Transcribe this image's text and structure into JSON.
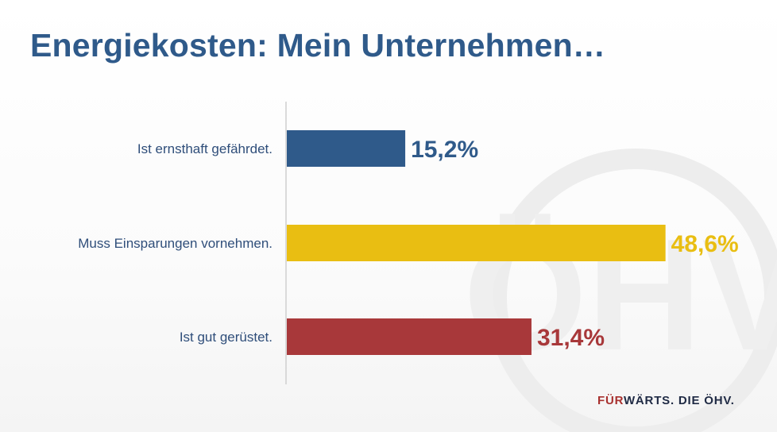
{
  "header": {
    "title": "Energiekosten: Mein Unternehmen…"
  },
  "chart_data": {
    "type": "bar",
    "orientation": "horizontal",
    "title": "Energiekosten: Mein Unternehmen…",
    "xlabel": "",
    "ylabel": "",
    "xlim": [
      0,
      52
    ],
    "grid": false,
    "categories": [
      "Ist ernsthaft gefährdet.",
      "Muss Einsparungen vornehmen.",
      "Ist gut gerüstet."
    ],
    "values": [
      15.2,
      48.6,
      31.4
    ],
    "value_labels": [
      "15,2%",
      "48,6%",
      "31,4%"
    ],
    "colors": [
      "#2f5a8a",
      "#e9be12",
      "#a8383a"
    ]
  },
  "footer": {
    "brand_part1": "FÜR",
    "brand_part2": "WÄRTS. DIE ÖHV."
  },
  "watermark": {
    "text": "ÖHV"
  }
}
